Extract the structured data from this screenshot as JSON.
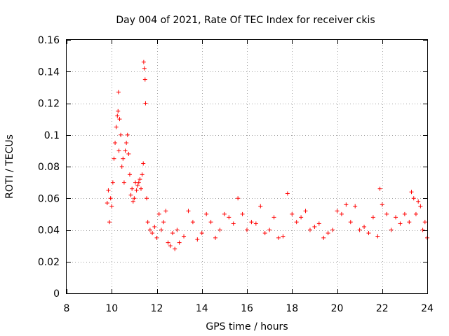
{
  "chart_data": {
    "type": "scatter",
    "title": "Day 004 of 2021, Rate Of TEC Index for receiver ckis",
    "xlabel": "GPS time / hours",
    "ylabel": "ROTI / TECUs",
    "xlim": [
      8,
      24
    ],
    "ylim": [
      0,
      0.16
    ],
    "xticks": [
      8,
      10,
      12,
      14,
      16,
      18,
      20,
      22,
      24
    ],
    "xtick_labels": [
      "8",
      "10",
      "12",
      "14",
      "16",
      "18",
      "20",
      "22",
      "24"
    ],
    "yticks": [
      0,
      0.02,
      0.04,
      0.06,
      0.08,
      0.1,
      0.12,
      0.14,
      0.16
    ],
    "ytick_labels": [
      "0",
      "0.02",
      "0.04",
      "0.06",
      "0.08",
      "0.1",
      "0.12",
      "0.14",
      "0.16"
    ],
    "grid": true,
    "marker": "+",
    "color": "#ff0000",
    "series": [
      {
        "name": "ROTI",
        "x": [
          9.8,
          9.85,
          9.9,
          9.95,
          10.0,
          10.05,
          10.1,
          10.15,
          10.2,
          10.25,
          10.28,
          10.3,
          10.32,
          10.35,
          10.4,
          10.45,
          10.5,
          10.55,
          10.6,
          10.65,
          10.7,
          10.75,
          10.8,
          10.85,
          10.9,
          10.95,
          11.0,
          11.05,
          11.1,
          11.15,
          11.2,
          11.25,
          11.3,
          11.35,
          11.4,
          11.42,
          11.45,
          11.48,
          11.5,
          11.55,
          11.6,
          11.7,
          11.8,
          11.9,
          12.0,
          12.1,
          12.2,
          12.3,
          12.4,
          12.5,
          12.6,
          12.7,
          12.8,
          12.9,
          13.0,
          13.2,
          13.4,
          13.6,
          13.8,
          14.0,
          14.2,
          14.4,
          14.6,
          14.8,
          15.0,
          15.2,
          15.4,
          15.6,
          15.8,
          16.0,
          16.2,
          16.4,
          16.6,
          16.8,
          17.0,
          17.2,
          17.4,
          17.6,
          17.8,
          18.0,
          18.2,
          18.4,
          18.6,
          18.8,
          19.0,
          19.2,
          19.4,
          19.6,
          19.8,
          20.0,
          20.2,
          20.4,
          20.6,
          20.8,
          21.0,
          21.2,
          21.4,
          21.6,
          21.8,
          21.9,
          22.0,
          22.2,
          22.4,
          22.6,
          22.8,
          23.0,
          23.2,
          23.3,
          23.4,
          23.5,
          23.6,
          23.7,
          23.8,
          23.9,
          24.0
        ],
        "y": [
          0.057,
          0.065,
          0.045,
          0.06,
          0.055,
          0.07,
          0.085,
          0.095,
          0.105,
          0.112,
          0.115,
          0.127,
          0.09,
          0.11,
          0.1,
          0.08,
          0.085,
          0.07,
          0.09,
          0.095,
          0.1,
          0.088,
          0.075,
          0.062,
          0.066,
          0.058,
          0.06,
          0.07,
          0.065,
          0.068,
          0.07,
          0.072,
          0.066,
          0.075,
          0.082,
          0.146,
          0.142,
          0.135,
          0.12,
          0.06,
          0.045,
          0.04,
          0.038,
          0.042,
          0.035,
          0.05,
          0.04,
          0.045,
          0.052,
          0.032,
          0.03,
          0.038,
          0.028,
          0.04,
          0.032,
          0.036,
          0.052,
          0.045,
          0.034,
          0.038,
          0.05,
          0.045,
          0.035,
          0.04,
          0.05,
          0.048,
          0.044,
          0.06,
          0.05,
          0.04,
          0.045,
          0.044,
          0.055,
          0.038,
          0.04,
          0.048,
          0.035,
          0.036,
          0.063,
          0.05,
          0.045,
          0.048,
          0.052,
          0.04,
          0.042,
          0.044,
          0.035,
          0.038,
          0.04,
          0.052,
          0.05,
          0.056,
          0.045,
          0.055,
          0.04,
          0.042,
          0.038,
          0.048,
          0.036,
          0.066,
          0.056,
          0.05,
          0.04,
          0.048,
          0.044,
          0.05,
          0.045,
          0.064,
          0.06,
          0.05,
          0.058,
          0.055,
          0.04,
          0.045,
          0.035
        ]
      }
    ]
  }
}
